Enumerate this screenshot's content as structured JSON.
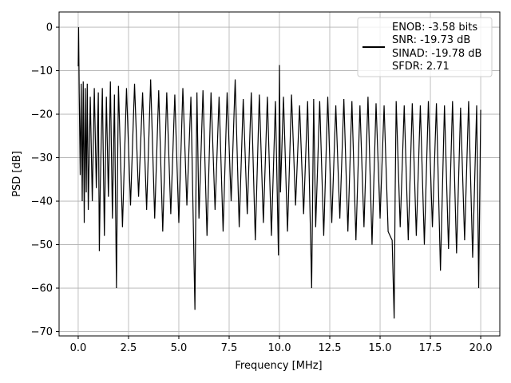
{
  "chart_data": {
    "type": "line",
    "xlabel": "Frequency [MHz]",
    "ylabel": "PSD [dB]",
    "xlim": [
      -0.95,
      20.95
    ],
    "ylim": [
      -71,
      3.5
    ],
    "xticks": [
      0.0,
      2.5,
      5.0,
      7.5,
      10.0,
      12.5,
      15.0,
      17.5,
      20.0
    ],
    "xtick_labels": [
      "0.0",
      "2.5",
      "5.0",
      "7.5",
      "10.0",
      "12.5",
      "15.0",
      "17.5",
      "20.0"
    ],
    "yticks": [
      0,
      -10,
      -20,
      -30,
      -40,
      -50,
      -60,
      -70
    ],
    "ytick_labels": [
      "0",
      "−10",
      "−20",
      "−30",
      "−40",
      "−50",
      "−60",
      "−70"
    ],
    "grid": true,
    "legend_position": "top-right",
    "legend_lines": [
      "ENOB: -3.58 bits",
      "SNR: -19.73 dB",
      "SINAD: -19.78 dB",
      "SFDR: 2.71"
    ],
    "line_color": "#000000",
    "series": [
      {
        "x": [
          0.0,
          0.02,
          0.05,
          0.1,
          0.15,
          0.2,
          0.25,
          0.3,
          0.35,
          0.4,
          0.45,
          0.5,
          0.6,
          0.7,
          0.8,
          0.9,
          1.0,
          1.05,
          1.1,
          1.2,
          1.3,
          1.4,
          1.5,
          1.6,
          1.7,
          1.8,
          1.9,
          1.95,
          2.0,
          2.2,
          2.4,
          2.6,
          2.8,
          3.0,
          3.2,
          3.4,
          3.6,
          3.8,
          4.0,
          4.2,
          4.4,
          4.6,
          4.8,
          5.0,
          5.2,
          5.4,
          5.6,
          5.8,
          5.85,
          5.9,
          6.0,
          6.2,
          6.4,
          6.6,
          6.8,
          7.0,
          7.2,
          7.4,
          7.6,
          7.8,
          8.0,
          8.2,
          8.4,
          8.6,
          8.8,
          9.0,
          9.2,
          9.4,
          9.6,
          9.8,
          9.95,
          10.0,
          10.05,
          10.2,
          10.4,
          10.6,
          10.8,
          11.0,
          11.2,
          11.4,
          11.6,
          11.65,
          11.7,
          11.8,
          12.0,
          12.2,
          12.4,
          12.6,
          12.8,
          13.0,
          13.2,
          13.4,
          13.6,
          13.8,
          14.0,
          14.2,
          14.4,
          14.6,
          14.8,
          15.0,
          15.2,
          15.4,
          15.6,
          15.7,
          15.75,
          15.8,
          16.0,
          16.2,
          16.4,
          16.6,
          16.8,
          17.0,
          17.2,
          17.4,
          17.6,
          17.8,
          18.0,
          18.2,
          18.4,
          18.6,
          18.8,
          19.0,
          19.2,
          19.4,
          19.6,
          19.8,
          19.9,
          20.0
        ],
        "y": [
          -9.0,
          0.0,
          -15.0,
          -34.0,
          -13.0,
          -40.0,
          -12.5,
          -45.0,
          -14.0,
          -38.0,
          -13.0,
          -42.0,
          -16.0,
          -40.0,
          -14.0,
          -37.0,
          -15.0,
          -51.5,
          -36.0,
          -14.0,
          -48.0,
          -16.0,
          -39.0,
          -12.5,
          -44.0,
          -15.5,
          -60.0,
          -35.0,
          -13.5,
          -46.0,
          -14.0,
          -41.0,
          -13.0,
          -39.0,
          -15.0,
          -42.0,
          -12.0,
          -44.0,
          -14.5,
          -47.0,
          -15.0,
          -43.0,
          -15.5,
          -45.0,
          -14.0,
          -41.0,
          -16.0,
          -65.0,
          -38.0,
          -15.0,
          -44.0,
          -14.5,
          -48.0,
          -15.0,
          -42.0,
          -16.0,
          -47.0,
          -15.0,
          -40.0,
          -12.0,
          -46.0,
          -16.5,
          -43.0,
          -15.0,
          -49.0,
          -15.5,
          -45.0,
          -16.0,
          -48.0,
          -17.0,
          -52.5,
          -8.7,
          -38.0,
          -16.0,
          -47.0,
          -15.5,
          -41.0,
          -18.0,
          -43.0,
          -17.0,
          -60.0,
          -38.0,
          -16.5,
          -46.0,
          -17.0,
          -48.0,
          -16.0,
          -45.0,
          -18.0,
          -44.0,
          -16.5,
          -47.0,
          -17.0,
          -49.0,
          -18.0,
          -46.0,
          -16.0,
          -50.0,
          -17.5,
          -44.0,
          -18.0,
          -47.0,
          -49.0,
          -67.0,
          -38.0,
          -17.0,
          -46.0,
          -18.0,
          -49.0,
          -17.5,
          -48.0,
          -18.0,
          -50.0,
          -17.0,
          -46.0,
          -17.5,
          -56.0,
          -18.0,
          -51.0,
          -17.0,
          -52.0,
          -18.5,
          -49.0,
          -17.0,
          -53.0,
          -18.0,
          -60.0,
          -19.0
        ]
      }
    ]
  }
}
